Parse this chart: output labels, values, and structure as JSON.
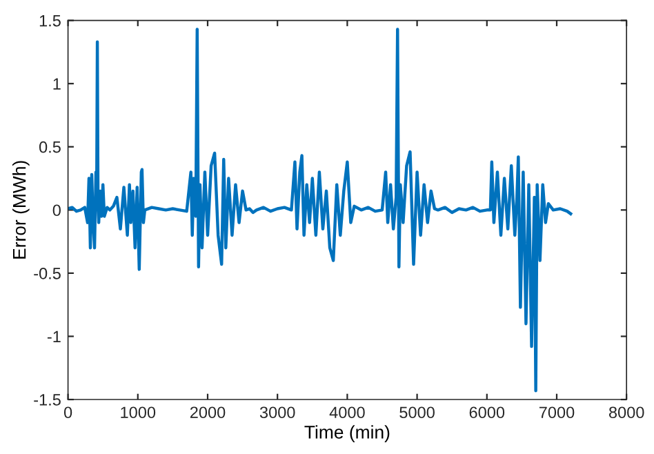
{
  "chart_data": {
    "type": "line",
    "xlabel": "Time (min)",
    "ylabel": "Error (MWh)",
    "xlim": [
      0,
      8000
    ],
    "ylim": [
      -1.5,
      1.5
    ],
    "xticks": [
      0,
      1000,
      2000,
      3000,
      4000,
      5000,
      6000,
      7000,
      8000
    ],
    "yticks": [
      -1.5,
      -1,
      -0.5,
      0,
      0.5,
      1,
      1.5
    ],
    "grid": false,
    "legend": false,
    "series": [
      {
        "color": "#0072bd",
        "x": [
          0,
          60,
          120,
          180,
          240,
          280,
          300,
          320,
          340,
          360,
          380,
          400,
          410,
          420,
          430,
          440,
          460,
          480,
          500,
          520,
          560,
          600,
          650,
          700,
          750,
          800,
          850,
          880,
          900,
          930,
          960,
          990,
          1020,
          1050,
          1060,
          1080,
          1100,
          1200,
          1300,
          1400,
          1500,
          1600,
          1700,
          1760,
          1780,
          1800,
          1830,
          1850,
          1870,
          1890,
          1920,
          1960,
          2000,
          2050,
          2100,
          2150,
          2200,
          2230,
          2260,
          2300,
          2350,
          2400,
          2450,
          2500,
          2550,
          2600,
          2650,
          2700,
          2800,
          2900,
          3000,
          3100,
          3200,
          3250,
          3280,
          3320,
          3350,
          3380,
          3420,
          3460,
          3500,
          3550,
          3600,
          3650,
          3700,
          3750,
          3800,
          3850,
          3900,
          3950,
          4000,
          4050,
          4100,
          4200,
          4300,
          4400,
          4500,
          4550,
          4580,
          4620,
          4660,
          4700,
          4720,
          4740,
          4760,
          4800,
          4850,
          4900,
          4950,
          5000,
          5050,
          5100,
          5150,
          5200,
          5250,
          5300,
          5400,
          5500,
          5600,
          5700,
          5800,
          5900,
          6000,
          6050,
          6070,
          6100,
          6150,
          6200,
          6250,
          6300,
          6350,
          6400,
          6430,
          6450,
          6480,
          6520,
          6560,
          6600,
          6640,
          6680,
          6700,
          6720,
          6760,
          6800,
          6840,
          6880,
          6950,
          7050,
          7150,
          7200
        ],
        "values": [
          0.01,
          0.02,
          -0.01,
          0.0,
          0.02,
          -0.1,
          0.25,
          -0.3,
          0.28,
          -0.1,
          -0.3,
          0.3,
          0.1,
          1.33,
          0.05,
          -0.1,
          0.15,
          -0.05,
          0.2,
          -0.05,
          0.02,
          0.0,
          0.03,
          0.1,
          -0.15,
          0.18,
          -0.2,
          0.2,
          -0.1,
          0.15,
          -0.3,
          0.18,
          -0.47,
          0.3,
          0.32,
          -0.1,
          0.0,
          0.02,
          0.01,
          0.0,
          0.01,
          0.0,
          -0.01,
          0.3,
          -0.2,
          0.25,
          -0.05,
          1.43,
          -0.45,
          0.2,
          -0.3,
          0.3,
          -0.2,
          0.35,
          0.45,
          -0.2,
          -0.43,
          0.4,
          -0.3,
          0.25,
          -0.2,
          0.2,
          -0.1,
          0.15,
          0.0,
          0.01,
          -0.02,
          0.0,
          0.02,
          -0.01,
          0.01,
          0.02,
          0.0,
          0.38,
          -0.15,
          0.3,
          0.43,
          -0.2,
          0.2,
          -0.1,
          0.25,
          -0.2,
          0.3,
          -0.15,
          0.15,
          -0.3,
          -0.4,
          0.2,
          -0.2,
          0.15,
          0.38,
          -0.1,
          0.03,
          0.0,
          0.02,
          -0.01,
          0.0,
          0.3,
          -0.1,
          0.2,
          -0.15,
          0.1,
          1.43,
          -0.45,
          0.2,
          -0.1,
          0.35,
          0.46,
          -0.43,
          0.3,
          -0.2,
          0.2,
          -0.1,
          0.15,
          0.01,
          0.0,
          0.02,
          -0.02,
          0.01,
          0.0,
          0.02,
          -0.01,
          0.0,
          0.0,
          0.38,
          -0.1,
          0.3,
          -0.2,
          0.25,
          -0.15,
          0.35,
          -0.2,
          0.1,
          0.42,
          -0.77,
          0.3,
          -0.9,
          0.2,
          -1.08,
          0.1,
          -1.43,
          0.2,
          -0.4,
          0.2,
          -0.1,
          0.05,
          0.0,
          0.01,
          -0.01,
          -0.03
        ]
      }
    ]
  }
}
